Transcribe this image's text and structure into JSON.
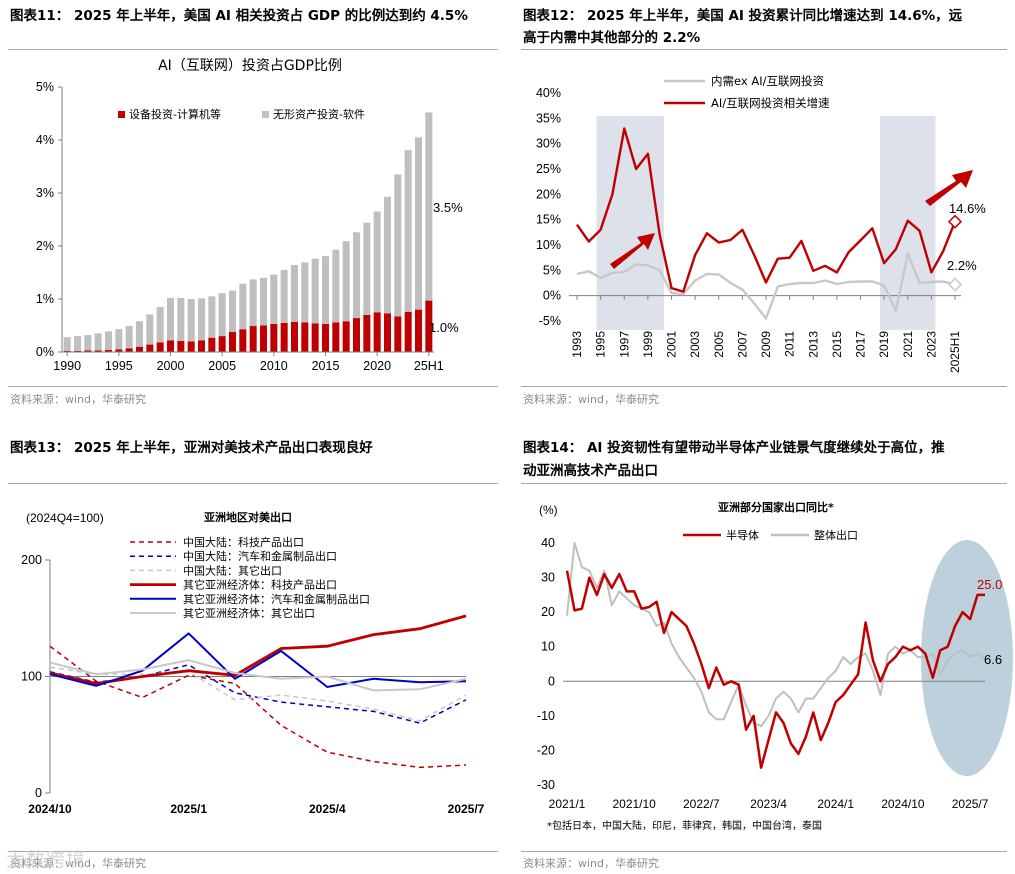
{
  "panels": {
    "p11": {
      "title": "图表11： 2025 年上半年，美国 AI 相关投资占 GDP 的比例达到约 4.5%",
      "source": "资料来源：wind，华泰研究"
    },
    "p12": {
      "title_line1": "图表12： 2025 年上半年，美国 AI 投资累计同比增速达到 14.6%，远",
      "title_line2": "高于内需中其他部分的 2.2%",
      "source": "资料来源：wind，华泰研究"
    },
    "p13": {
      "title": "图表13： 2025 年上半年，亚洲对美技术产品出口表现良好",
      "source": "资料来源：wind，华泰研究"
    },
    "p14": {
      "title_line1": "图表14： AI 投资韧性有望带动半导体产业链景气度继续处于高位，推",
      "title_line2": "动亚洲高技术产品出口",
      "source": "资料来源：wind，华泰研究"
    }
  },
  "watermark": "大数跨境",
  "colors": {
    "red": "#c00000",
    "gray": "#bfbfbf",
    "blue": "#0000c8",
    "lightgray": "#c8c8c8",
    "band": "#dde1ea",
    "ellipse": "#b9cfdb"
  },
  "chart_data": [
    {
      "id": "c11",
      "type": "bar",
      "stacked": true,
      "title": "AI（互联网）投资占GDP比例",
      "ylim": [
        0,
        5
      ],
      "yticks": [
        "0%",
        "1%",
        "2%",
        "3%",
        "4%",
        "5%"
      ],
      "categories": [
        "1990",
        "1991",
        "1992",
        "1993",
        "1994",
        "1995",
        "1996",
        "1997",
        "1998",
        "1999",
        "2000",
        "2001",
        "2002",
        "2003",
        "2004",
        "2005",
        "2006",
        "2007",
        "2008",
        "2009",
        "2010",
        "2011",
        "2012",
        "2013",
        "2014",
        "2015",
        "2016",
        "2017",
        "2018",
        "2019",
        "2020",
        "2021",
        "2022",
        "2023",
        "2024",
        "25H1"
      ],
      "xtick_labels": [
        "1990",
        "1995",
        "2000",
        "2005",
        "2010",
        "2015",
        "2020",
        "25H1"
      ],
      "xtick_indices": [
        0,
        5,
        10,
        15,
        20,
        25,
        30,
        35
      ],
      "series": [
        {
          "name": "设备投资-计算机等",
          "color": "#c00000",
          "values": [
            0.02,
            0.02,
            0.03,
            0.03,
            0.04,
            0.05,
            0.07,
            0.1,
            0.14,
            0.18,
            0.22,
            0.21,
            0.2,
            0.22,
            0.27,
            0.3,
            0.38,
            0.43,
            0.49,
            0.5,
            0.53,
            0.55,
            0.57,
            0.56,
            0.54,
            0.53,
            0.56,
            0.58,
            0.64,
            0.7,
            0.75,
            0.73,
            0.67,
            0.76,
            0.8,
            0.97
          ]
        },
        {
          "name": "无形资产投资-软件",
          "color": "#bfbfbf",
          "values": [
            0.26,
            0.28,
            0.29,
            0.32,
            0.35,
            0.38,
            0.42,
            0.48,
            0.57,
            0.67,
            0.8,
            0.81,
            0.8,
            0.79,
            0.78,
            0.81,
            0.78,
            0.86,
            0.88,
            0.9,
            0.93,
            1.0,
            1.07,
            1.13,
            1.22,
            1.28,
            1.37,
            1.51,
            1.62,
            1.74,
            1.9,
            2.2,
            2.68,
            3.05,
            3.25,
            3.55
          ]
        }
      ],
      "annotations": [
        "3.5%",
        "1.0%"
      ]
    },
    {
      "id": "c12",
      "type": "line",
      "ylim": [
        -5,
        40
      ],
      "yticks": [
        "-5%",
        "0%",
        "5%",
        "10%",
        "15%",
        "20%",
        "25%",
        "30%",
        "35%",
        "40%"
      ],
      "x": [
        "1993",
        "1994",
        "1995",
        "1996",
        "1997",
        "1998",
        "1999",
        "2000",
        "2001",
        "2002",
        "2003",
        "2004",
        "2005",
        "2006",
        "2007",
        "2008",
        "2009",
        "2010",
        "2011",
        "2012",
        "2013",
        "2014",
        "2015",
        "2016",
        "2017",
        "2018",
        "2019",
        "2020",
        "2021",
        "2022",
        "2023",
        "2024",
        "2025H1"
      ],
      "xtick_labels": [
        "1993",
        "1995",
        "1997",
        "1999",
        "2001",
        "2003",
        "2005",
        "2007",
        "2009",
        "2011",
        "2013",
        "2015",
        "2017",
        "2019",
        "2021",
        "2023",
        "2025H1"
      ],
      "shaded_ranges": [
        [
          "1995",
          "2000"
        ],
        [
          "2019",
          "2023"
        ]
      ],
      "series": [
        {
          "name": "内需ex AI/互联网投资",
          "color": "#c8c8c8",
          "values": [
            4.3,
            4.8,
            3.5,
            4.5,
            4.7,
            6.2,
            6.0,
            5.0,
            0.5,
            0.3,
            3.0,
            4.3,
            4.2,
            2.5,
            1.2,
            -1.5,
            -4.5,
            1.8,
            2.3,
            2.5,
            2.5,
            3.0,
            2.3,
            2.7,
            2.8,
            2.8,
            2.0,
            -3.0,
            8.3,
            2.5,
            2.7,
            2.8,
            2.2
          ]
        },
        {
          "name": "AI/互联网投资相关增速",
          "color": "#c00000",
          "values": [
            14.0,
            10.7,
            13.0,
            20.0,
            33.0,
            25.0,
            28.0,
            12.0,
            1.5,
            0.8,
            8.0,
            12.3,
            10.5,
            11.0,
            13.0,
            8.0,
            2.6,
            7.3,
            7.5,
            10.8,
            4.9,
            5.9,
            4.6,
            8.6,
            10.9,
            13.3,
            6.4,
            9.2,
            14.8,
            12.8,
            4.6,
            8.8,
            14.6
          ]
        }
      ],
      "annotations": [
        "14.6%",
        "2.2%"
      ]
    },
    {
      "id": "c13",
      "type": "line",
      "title": "亚洲地区对美出口",
      "unit_label": "(2024Q4=100)",
      "ylim": [
        0,
        200
      ],
      "yticks": [
        "0",
        "100",
        "200"
      ],
      "x": [
        "2024/10",
        "2024/11",
        "2024/12",
        "2025/1",
        "2025/2",
        "2025/3",
        "2025/4",
        "2025/5",
        "2025/6",
        "2025/7"
      ],
      "xtick_labels": [
        "2024/10",
        "2025/1",
        "2025/4",
        "2025/7"
      ],
      "series": [
        {
          "name": "中国大陆：科技产品出口",
          "color": "#c00000",
          "dash": true,
          "values": [
            126,
            96,
            82,
            101,
            94,
            58,
            35,
            27,
            22,
            24
          ]
        },
        {
          "name": "中国大陆：汽车和金属制品出口",
          "color": "#0000c8",
          "dash": true,
          "values": [
            104,
            95,
            100,
            110,
            86,
            78,
            74,
            70,
            60,
            80
          ]
        },
        {
          "name": "中国大陆：其它出口",
          "color": "#c8c8c8",
          "dash": true,
          "values": [
            108,
            102,
            102,
            104,
            80,
            84,
            79,
            72,
            62,
            84
          ]
        },
        {
          "name": "其它亚洲经济体：科技产品出口",
          "color": "#c00000",
          "dash": false,
          "values": [
            103,
            94,
            100,
            105,
            101,
            124,
            126,
            136,
            141,
            152
          ]
        },
        {
          "name": "其它亚洲经济体：汽车和金属制品出口",
          "color": "#0000c8",
          "dash": false,
          "values": [
            102,
            92,
            105,
            137,
            98,
            122,
            91,
            98,
            95,
            96
          ]
        },
        {
          "name": "其它亚洲经济体：其它出口",
          "color": "#c8c8c8",
          "dash": false,
          "values": [
            112,
            102,
            106,
            114,
            103,
            98,
            100,
            88,
            89,
            98
          ]
        }
      ]
    },
    {
      "id": "c14",
      "type": "line",
      "title": "亚洲部分国家出口同比*",
      "unit_label": "(%)",
      "ylim": [
        -30,
        40
      ],
      "yticks": [
        "-30",
        "-20",
        "-10",
        "0",
        "10",
        "20",
        "30",
        "40"
      ],
      "x_start": "2021/1",
      "xtick_labels": [
        "2021/1",
        "2021/10",
        "2022/7",
        "2023/4",
        "2024/1",
        "2024/10",
        "2025/7"
      ],
      "series": [
        {
          "name": "半导体",
          "color": "#c00000",
          "values": [
            32,
            20.5,
            21,
            30,
            25,
            31,
            27,
            31,
            26,
            26,
            21,
            21.5,
            23,
            14,
            20,
            18,
            16,
            11,
            5,
            -2,
            4,
            -1,
            0,
            -1,
            -14,
            -10,
            -25,
            -17,
            -9,
            -12,
            -18,
            -21,
            -16,
            -9,
            -17,
            -12,
            -6,
            -4,
            -1,
            2,
            17,
            6,
            0,
            5,
            7,
            10,
            9,
            10,
            8,
            1,
            9,
            10,
            16,
            20,
            18,
            25,
            25
          ]
        },
        {
          "name": "整体出口",
          "color": "#bfbfbf",
          "values": [
            19,
            40,
            33,
            32,
            27,
            32,
            22,
            26,
            24,
            22,
            21,
            20,
            16,
            17,
            11,
            7,
            4,
            1,
            -3,
            -9,
            -11,
            -11,
            -6,
            -1,
            -7,
            -12,
            -13,
            -10,
            -5,
            -3,
            -5,
            -9,
            -5,
            -5,
            -2,
            1,
            3,
            7,
            5,
            7,
            8,
            3,
            -4,
            8,
            10,
            8,
            9,
            7,
            7,
            8,
            2,
            6,
            8,
            9,
            7,
            8,
            6.6
          ]
        }
      ],
      "annotations": [
        "25.0",
        "6.6"
      ],
      "footnote": "*包括日本，中国大陆，印尼，菲律宾，韩国，中国台湾，泰国"
    }
  ]
}
